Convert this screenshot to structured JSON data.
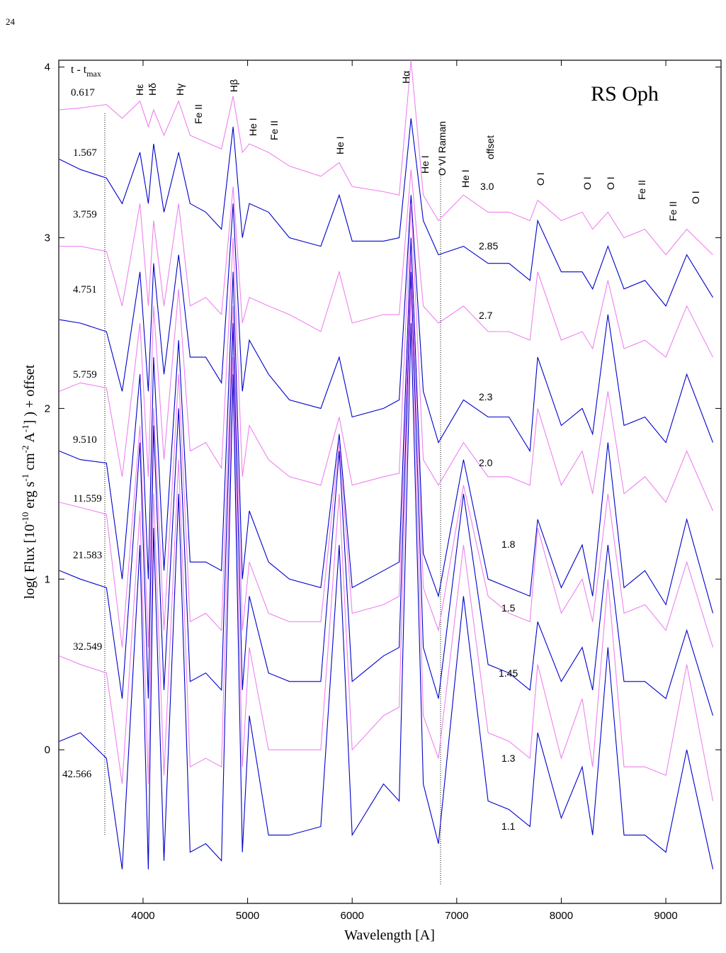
{
  "page_number": "24",
  "chart_data": {
    "type": "line",
    "title": "RS Oph",
    "time_label": "t - t",
    "time_label_sub": "max",
    "x_label": "Wavelength [A]",
    "y_label_parts": [
      "log( Flux [10",
      "-10",
      " erg s",
      "-1",
      " cm",
      "-2",
      " A",
      "-1",
      "] )  +  offset"
    ],
    "xlim": [
      3194,
      9528
    ],
    "ylim": [
      -0.9,
      4.04
    ],
    "xticks": [
      4000,
      5000,
      6000,
      7000,
      8000,
      9000
    ],
    "yticks": [
      0,
      1,
      2,
      3,
      4
    ],
    "line_labels": [
      "Hε",
      "Hδ",
      "Hγ",
      "Fe II",
      "Hβ",
      "He I",
      "Fe II",
      "He I",
      "Hα",
      "He I",
      "O VI  Raman",
      "He I",
      "offset",
      "O I",
      "O I",
      "O I",
      "Fe II",
      "Fe II",
      "O I"
    ],
    "x": [
      3200,
      3400,
      3650,
      3800,
      3970,
      4050,
      4101,
      4200,
      4340,
      4450,
      4600,
      4750,
      4861,
      4950,
      5016,
      5200,
      5400,
      5700,
      5876,
      6000,
      6300,
      6450,
      6563,
      6680,
      6825,
      7065,
      7300,
      7500,
      7700,
      7774,
      8000,
      8200,
      8300,
      8446,
      8600,
      8800,
      9000,
      9200,
      9450
    ],
    "series": [
      {
        "name": "0.617",
        "offset": "3.0",
        "color": "#ee82ee",
        "values": [
          3.75,
          3.76,
          3.78,
          3.7,
          3.8,
          3.65,
          3.75,
          3.6,
          3.8,
          3.6,
          3.56,
          3.52,
          3.83,
          3.5,
          3.55,
          3.5,
          3.42,
          3.36,
          3.44,
          3.3,
          3.27,
          3.25,
          4.04,
          3.25,
          3.1,
          3.25,
          3.15,
          3.15,
          3.1,
          3.22,
          3.1,
          3.15,
          3.05,
          3.15,
          3.0,
          3.05,
          2.9,
          3.05,
          2.9
        ]
      },
      {
        "name": "1.567",
        "offset": "2.85",
        "color": "#0000cc",
        "values": [
          3.46,
          3.4,
          3.35,
          3.2,
          3.5,
          3.2,
          3.55,
          3.15,
          3.5,
          3.2,
          3.15,
          3.05,
          3.65,
          3.0,
          3.2,
          3.15,
          3.0,
          2.95,
          3.25,
          2.98,
          2.98,
          3.0,
          3.7,
          3.1,
          2.9,
          2.95,
          2.85,
          2.85,
          2.75,
          3.1,
          2.8,
          2.8,
          2.7,
          2.95,
          2.7,
          2.75,
          2.6,
          2.9,
          2.65
        ]
      },
      {
        "name": "3.759",
        "offset": "2.7",
        "color": "#ee82ee",
        "values": [
          2.95,
          2.95,
          2.92,
          2.6,
          3.2,
          2.6,
          3.1,
          2.6,
          3.2,
          2.6,
          2.65,
          2.55,
          3.3,
          2.5,
          2.65,
          2.6,
          2.55,
          2.45,
          2.8,
          2.5,
          2.55,
          2.55,
          3.4,
          2.6,
          2.5,
          2.6,
          2.45,
          2.45,
          2.4,
          2.8,
          2.4,
          2.45,
          2.35,
          2.75,
          2.35,
          2.4,
          2.3,
          2.6,
          2.3
        ]
      },
      {
        "name": "4.751",
        "offset": "2.3",
        "color": "#0000cc",
        "values": [
          2.52,
          2.5,
          2.45,
          2.1,
          2.8,
          2.1,
          2.85,
          2.2,
          2.9,
          2.3,
          2.3,
          2.15,
          3.2,
          2.1,
          2.4,
          2.2,
          2.05,
          2.0,
          2.3,
          1.95,
          2.0,
          2.05,
          3.25,
          2.1,
          1.8,
          2.05,
          1.95,
          1.95,
          1.75,
          2.3,
          1.9,
          2.0,
          1.85,
          2.55,
          1.9,
          1.95,
          1.8,
          2.2,
          1.8
        ]
      },
      {
        "name": "5.759",
        "offset": "2.0",
        "color": "#ee82ee",
        "values": [
          2.1,
          2.15,
          2.12,
          1.6,
          2.5,
          1.6,
          2.6,
          1.7,
          2.7,
          1.75,
          1.8,
          1.65,
          3.0,
          1.6,
          1.9,
          1.7,
          1.6,
          1.55,
          1.95,
          1.55,
          1.6,
          1.62,
          3.2,
          1.7,
          1.55,
          1.8,
          1.6,
          1.6,
          1.55,
          2.0,
          1.55,
          1.75,
          1.5,
          2.1,
          1.5,
          1.6,
          1.45,
          1.75,
          1.4
        ]
      },
      {
        "name": "9.510",
        "offset": "1.8",
        "color": "#0000cc",
        "values": [
          1.75,
          1.7,
          1.68,
          1.0,
          2.2,
          1.0,
          2.3,
          1.05,
          2.4,
          1.1,
          1.1,
          1.05,
          2.8,
          1.0,
          1.4,
          1.1,
          1.0,
          0.95,
          1.85,
          0.95,
          1.05,
          1.1,
          3.0,
          1.15,
          0.9,
          1.7,
          1.0,
          0.95,
          0.9,
          1.35,
          0.95,
          1.2,
          0.9,
          1.8,
          0.95,
          1.05,
          0.85,
          1.35,
          0.8
        ]
      },
      {
        "name": "11.559",
        "offset": "1.5",
        "color": "#ee82ee",
        "values": [
          1.45,
          1.42,
          1.38,
          0.6,
          1.9,
          0.6,
          2.0,
          0.7,
          2.2,
          0.75,
          0.8,
          0.7,
          2.6,
          0.7,
          1.1,
          0.8,
          0.75,
          0.75,
          1.8,
          0.8,
          0.85,
          0.9,
          2.9,
          0.95,
          0.7,
          1.55,
          0.9,
          0.8,
          0.75,
          1.3,
          0.8,
          1.0,
          0.75,
          1.5,
          0.8,
          0.85,
          0.7,
          1.1,
          0.6
        ]
      },
      {
        "name": "21.583",
        "offset": "1.45",
        "color": "#0000cc",
        "values": [
          1.05,
          1.0,
          0.95,
          0.3,
          1.8,
          0.3,
          1.9,
          0.35,
          2.0,
          0.4,
          0.45,
          0.35,
          2.5,
          0.35,
          0.9,
          0.45,
          0.4,
          0.4,
          1.75,
          0.4,
          0.55,
          0.6,
          2.8,
          0.6,
          0.3,
          1.5,
          0.5,
          0.45,
          0.35,
          0.75,
          0.4,
          0.6,
          0.35,
          1.2,
          0.4,
          0.4,
          0.3,
          0.7,
          0.2
        ]
      },
      {
        "name": "32.549",
        "offset": "1.3",
        "color": "#ee82ee",
        "values": [
          0.55,
          0.5,
          0.45,
          -0.2,
          1.4,
          -0.2,
          1.5,
          -0.15,
          1.7,
          -0.1,
          -0.05,
          -0.1,
          2.3,
          -0.1,
          0.6,
          0.0,
          0.0,
          0.0,
          1.5,
          0.0,
          0.2,
          0.25,
          2.7,
          0.2,
          -0.05,
          1.2,
          0.1,
          0.05,
          -0.05,
          0.5,
          -0.05,
          0.3,
          -0.1,
          1.0,
          -0.1,
          -0.1,
          -0.15,
          0.5,
          -0.3
        ]
      },
      {
        "name": "42.566",
        "offset": "1.1",
        "color": "#0000cc",
        "values": [
          0.05,
          0.1,
          -0.05,
          -0.7,
          1.2,
          -0.7,
          1.3,
          -0.65,
          1.5,
          -0.6,
          -0.55,
          -0.65,
          2.2,
          -0.6,
          0.2,
          -0.5,
          -0.5,
          -0.45,
          1.2,
          -0.5,
          -0.2,
          -0.3,
          2.5,
          -0.2,
          -0.55,
          0.9,
          -0.3,
          -0.35,
          -0.45,
          0.1,
          -0.4,
          -0.1,
          -0.5,
          0.6,
          -0.5,
          -0.5,
          -0.6,
          0.0,
          -0.7
        ]
      }
    ]
  }
}
